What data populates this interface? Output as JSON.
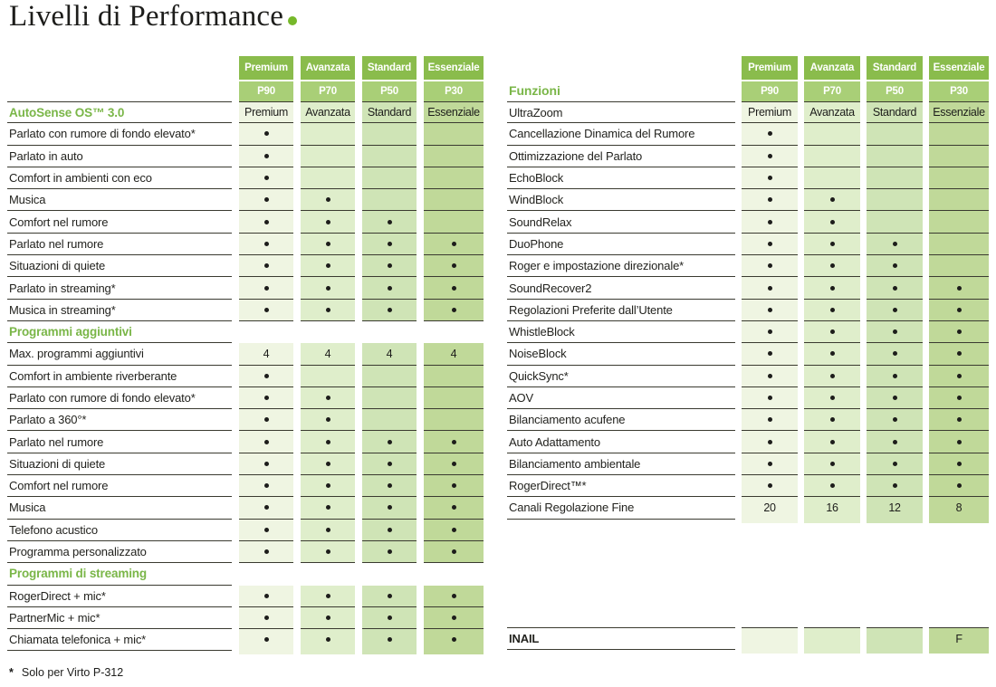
{
  "title": {
    "text": "Livelli di Performance"
  },
  "colors": {
    "header_top": "#8abc4c",
    "header_bottom": "#a9cf77",
    "columns": [
      "#eff5e2",
      "#dfeecb",
      "#cfe4b6",
      "#c0d999"
    ],
    "heading_green": "#7ab648",
    "title_dot": "#76b82a",
    "rule": "#3a3a30"
  },
  "tiers": [
    {
      "name": "Premium",
      "code": "P90"
    },
    {
      "name": "Avanzata",
      "code": "P70"
    },
    {
      "name": "Standard",
      "code": "P50"
    },
    {
      "name": "Essenziale",
      "code": "P30"
    }
  ],
  "left_table": {
    "rows": [
      {
        "type": "tiers",
        "label": "AutoSense OS™ 3.0",
        "label_style": "green",
        "cells": [
          "Premium",
          "Avanzata",
          "Standard",
          "Essenziale"
        ]
      },
      {
        "type": "feature",
        "label": "Parlato con rumore di fondo elevato*",
        "cells": [
          "dot",
          "",
          "",
          ""
        ]
      },
      {
        "type": "feature",
        "label": "Parlato in auto",
        "cells": [
          "dot",
          "",
          "",
          ""
        ]
      },
      {
        "type": "feature",
        "label": "Comfort in ambienti con eco",
        "cells": [
          "dot",
          "",
          "",
          ""
        ]
      },
      {
        "type": "feature",
        "label": "Musica",
        "cells": [
          "dot",
          "dot",
          "",
          ""
        ]
      },
      {
        "type": "feature",
        "label": "Comfort nel rumore",
        "cells": [
          "dot",
          "dot",
          "dot",
          ""
        ]
      },
      {
        "type": "feature",
        "label": "Parlato nel rumore",
        "cells": [
          "dot",
          "dot",
          "dot",
          "dot"
        ]
      },
      {
        "type": "feature",
        "label": "Situazioni di quiete",
        "cells": [
          "dot",
          "dot",
          "dot",
          "dot"
        ]
      },
      {
        "type": "feature",
        "label": "Parlato in streaming*",
        "cells": [
          "dot",
          "dot",
          "dot",
          "dot"
        ]
      },
      {
        "type": "feature",
        "label": "Musica in streaming*",
        "cells": [
          "dot",
          "dot",
          "dot",
          "dot"
        ]
      },
      {
        "type": "section",
        "label": "Programmi aggiuntivi"
      },
      {
        "type": "feature",
        "label": "Max. programmi aggiuntivi",
        "cells": [
          "4",
          "4",
          "4",
          "4"
        ]
      },
      {
        "type": "feature",
        "label": "Comfort in ambiente riverberante",
        "cells": [
          "dot",
          "",
          "",
          ""
        ]
      },
      {
        "type": "feature",
        "label": "Parlato con rumore di fondo elevato*",
        "cells": [
          "dot",
          "dot",
          "",
          ""
        ]
      },
      {
        "type": "feature",
        "label": "Parlato a 360°*",
        "cells": [
          "dot",
          "dot",
          "",
          ""
        ]
      },
      {
        "type": "feature",
        "label": "Parlato nel rumore",
        "cells": [
          "dot",
          "dot",
          "dot",
          "dot"
        ]
      },
      {
        "type": "feature",
        "label": "Situazioni di quiete",
        "cells": [
          "dot",
          "dot",
          "dot",
          "dot"
        ]
      },
      {
        "type": "feature",
        "label": "Comfort nel rumore",
        "cells": [
          "dot",
          "dot",
          "dot",
          "dot"
        ]
      },
      {
        "type": "feature",
        "label": "Musica",
        "cells": [
          "dot",
          "dot",
          "dot",
          "dot"
        ]
      },
      {
        "type": "feature",
        "label": "Telefono acustico",
        "cells": [
          "dot",
          "dot",
          "dot",
          "dot"
        ]
      },
      {
        "type": "feature",
        "label": "Programma personalizzato",
        "cells": [
          "dot",
          "dot",
          "dot",
          "dot"
        ]
      },
      {
        "type": "section",
        "label": "Programmi di streaming"
      },
      {
        "type": "feature",
        "label": "RogerDirect + mic*",
        "cells": [
          "dot",
          "dot",
          "dot",
          "dot"
        ]
      },
      {
        "type": "feature",
        "label": "PartnerMic + mic*",
        "cells": [
          "dot",
          "dot",
          "dot",
          "dot"
        ]
      },
      {
        "type": "feature",
        "label": "Chiamata telefonica + mic*",
        "cells": [
          "dot",
          "dot",
          "dot",
          "dot"
        ]
      }
    ]
  },
  "right_table": {
    "heading": "Funzioni",
    "rows": [
      {
        "type": "tiers",
        "label": "UltraZoom",
        "label_style": "normal",
        "cells": [
          "Premium",
          "Avanzata",
          "Standard",
          "Essenziale"
        ]
      },
      {
        "type": "feature",
        "label": "Cancellazione Dinamica del Rumore",
        "cells": [
          "dot",
          "",
          "",
          ""
        ]
      },
      {
        "type": "feature",
        "label": "Ottimizzazione del Parlato",
        "cells": [
          "dot",
          "",
          "",
          ""
        ]
      },
      {
        "type": "feature",
        "label": "EchoBlock",
        "cells": [
          "dot",
          "",
          "",
          ""
        ]
      },
      {
        "type": "feature",
        "label": "WindBlock",
        "cells": [
          "dot",
          "dot",
          "",
          ""
        ]
      },
      {
        "type": "feature",
        "label": "SoundRelax",
        "cells": [
          "dot",
          "dot",
          "",
          ""
        ]
      },
      {
        "type": "feature",
        "label": "DuoPhone",
        "cells": [
          "dot",
          "dot",
          "dot",
          ""
        ]
      },
      {
        "type": "feature",
        "label": "Roger e impostazione direzionale*",
        "cells": [
          "dot",
          "dot",
          "dot",
          ""
        ]
      },
      {
        "type": "feature",
        "label": "SoundRecover2",
        "cells": [
          "dot",
          "dot",
          "dot",
          "dot"
        ]
      },
      {
        "type": "feature",
        "label": "Regolazioni Preferite dall’Utente",
        "cells": [
          "dot",
          "dot",
          "dot",
          "dot"
        ]
      },
      {
        "type": "feature",
        "label": "WhistleBlock",
        "cells": [
          "dot",
          "dot",
          "dot",
          "dot"
        ]
      },
      {
        "type": "feature",
        "label": "NoiseBlock",
        "cells": [
          "dot",
          "dot",
          "dot",
          "dot"
        ]
      },
      {
        "type": "feature",
        "label": "QuickSync*",
        "cells": [
          "dot",
          "dot",
          "dot",
          "dot"
        ]
      },
      {
        "type": "feature",
        "label": "AOV",
        "cells": [
          "dot",
          "dot",
          "dot",
          "dot"
        ]
      },
      {
        "type": "feature",
        "label": "Bilanciamento acufene",
        "cells": [
          "dot",
          "dot",
          "dot",
          "dot"
        ]
      },
      {
        "type": "feature",
        "label": "Auto Adattamento",
        "cells": [
          "dot",
          "dot",
          "dot",
          "dot"
        ]
      },
      {
        "type": "feature",
        "label": "Bilanciamento ambientale",
        "cells": [
          "dot",
          "dot",
          "dot",
          "dot"
        ]
      },
      {
        "type": "feature",
        "label": "RogerDirect™*",
        "cells": [
          "dot",
          "dot",
          "dot",
          "dot"
        ]
      },
      {
        "type": "feature",
        "label": "Canali Regolazione Fine",
        "cells": [
          "20",
          "16",
          "12",
          "8"
        ]
      }
    ]
  },
  "inail_row": {
    "label": "INAIL",
    "cells": [
      "",
      "",
      "",
      "F"
    ]
  },
  "footnote": {
    "marker": "*",
    "text": "Solo per Virto P-312"
  }
}
